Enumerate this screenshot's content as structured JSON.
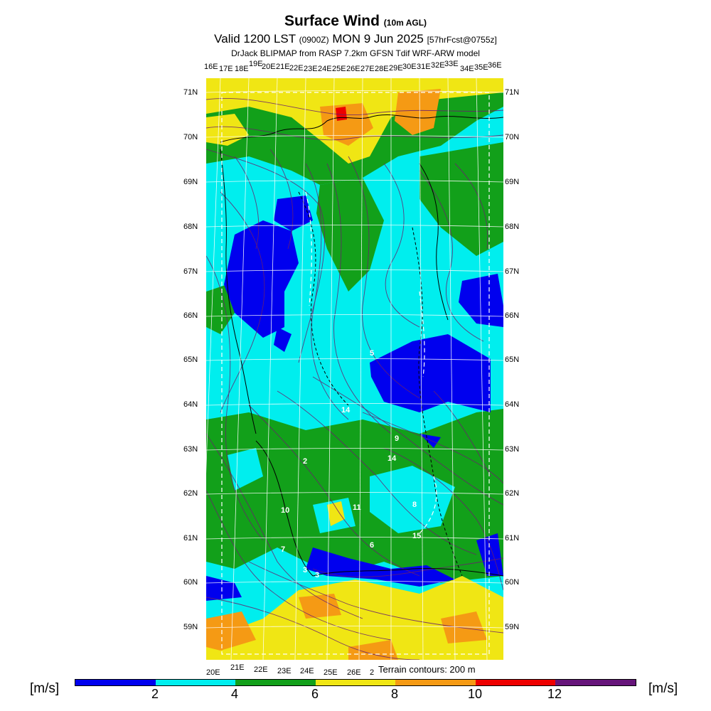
{
  "header": {
    "title_main": "Surface Wind",
    "title_sub": "(10m AGL)",
    "valid_main": "Valid 1200 LST",
    "valid_utc": "(0900Z)",
    "valid_date": "MON 9 Jun 2025",
    "valid_fcst": "[57hrFcst@0755z]",
    "model_line": "DrJack BLIPMAP from RASP 7.2km GFSN Tdif WRF-ARW model"
  },
  "map": {
    "top_lon_labels": [
      "16E",
      "17E",
      "18E",
      "19E",
      "20E",
      "21E",
      "22E",
      "23E",
      "24E",
      "25E",
      "26E",
      "27E",
      "28E",
      "29E",
      "30E",
      "31E",
      "32E",
      "33E",
      "34E",
      "35E",
      "36E"
    ],
    "bottom_lon_labels": [
      "20E",
      "21E",
      "22E",
      "23E",
      "24E",
      "25E",
      "26E",
      "2"
    ],
    "left_lat_labels": [
      "71N",
      "70N",
      "69N",
      "68N",
      "67N",
      "66N",
      "65N",
      "64N",
      "63N",
      "62N",
      "61N",
      "60N",
      "59N"
    ],
    "right_lat_labels": [
      "71N",
      "70N",
      "69N",
      "68N",
      "67N",
      "66N",
      "65N",
      "64N",
      "63N",
      "62N",
      "61N",
      "60N",
      "59N"
    ],
    "value_labels": [
      "5",
      "14",
      "9",
      "2",
      "14",
      "10",
      "11",
      "8",
      "15",
      "6",
      "3",
      "3",
      "7"
    ],
    "terrain_note": "Terrain contours: 200 m",
    "colors": {
      "lt2": "#0000ee",
      "c2_4": "#00eeee",
      "c4_6": "#12a01a",
      "c6_8": "#f0e614",
      "c8_10": "#f59a14",
      "c10_12": "#ee0000",
      "gt12": "#66157a",
      "streamline": "#6a1f6e",
      "coast": "#000000",
      "grid": "#ffffff"
    }
  },
  "legend": {
    "unit_left": "[m/s]",
    "unit_right": "[m/s]",
    "ticks": [
      "2",
      "4",
      "6",
      "8",
      "10",
      "12"
    ],
    "segments": [
      "#0000ee",
      "#00eeee",
      "#12a01a",
      "#f0e614",
      "#f59a14",
      "#ee0000",
      "#66157a"
    ]
  }
}
